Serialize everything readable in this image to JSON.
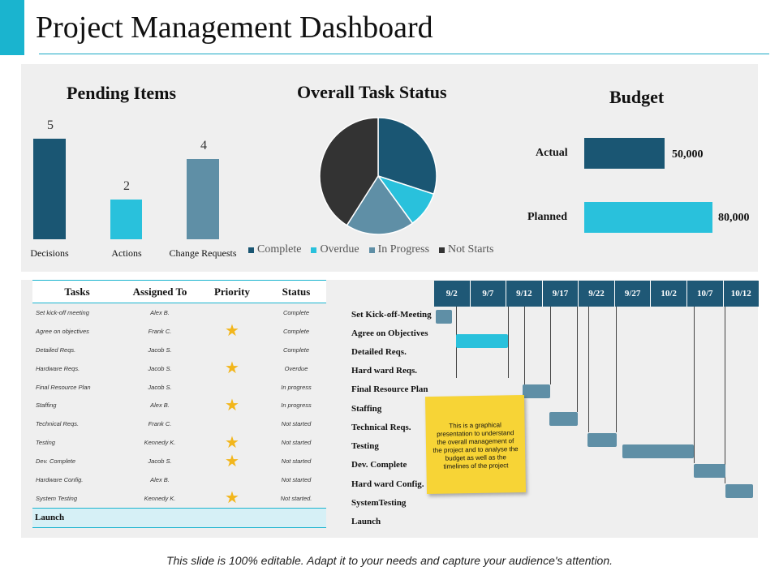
{
  "title": "Project Management Dashboard",
  "colors": {
    "dark": "#1a5673",
    "cyan": "#29c1dc",
    "slate": "#5f8fa6",
    "black": "#333333",
    "star": "#f2b61c"
  },
  "pending": {
    "heading": "Pending Items",
    "items": [
      {
        "label": "Decisions",
        "value": "5"
      },
      {
        "label": "Actions",
        "value": "2"
      },
      {
        "label": "Change Requests",
        "value": "4"
      }
    ]
  },
  "status": {
    "heading": "Overall Task Status",
    "legend": [
      "Complete",
      "Overdue",
      "In Progress",
      "Not Starts"
    ]
  },
  "chart_data": {
    "type": "pie",
    "title": "Overall Task Status",
    "categories": [
      "Complete",
      "Overdue",
      "In Progress",
      "Not Starts"
    ],
    "values": [
      30,
      10,
      19,
      41
    ]
  },
  "budget": {
    "heading": "Budget",
    "actual_label": "Actual",
    "actual_value": "50,000",
    "planned_label": "Planned",
    "planned_value": "80,000"
  },
  "tasks": {
    "headers": [
      "Tasks",
      "Assigned To",
      "Priority",
      "Status"
    ],
    "rows": [
      {
        "task": "Set kick-off meeting",
        "assigned": "Alex  B.",
        "status": "Complete"
      },
      {
        "task": "Agree on objectives",
        "assigned": "Frank  C.",
        "status": "Complete"
      },
      {
        "task": "Detailed Reqs.",
        "assigned": "Jacob  S.",
        "status": "Complete"
      },
      {
        "task": "Hardware Reqs.",
        "assigned": "Jacob  S.",
        "status": "Overdue"
      },
      {
        "task": "Final Resource Plan",
        "assigned": "Jacob  S.",
        "status": "In progress"
      },
      {
        "task": "Staffing",
        "assigned": "Alex  B.",
        "status": "In progress"
      },
      {
        "task": "Technical  Reqs.",
        "assigned": "Frank  C.",
        "status": "Not started"
      },
      {
        "task": "Testing",
        "assigned": "Kennedy  K.",
        "status": "Not started"
      },
      {
        "task": "Dev.  Complete",
        "assigned": "Jacob  S.",
        "status": "Not started"
      },
      {
        "task": "Hardware Config.",
        "assigned": "Alex  B.",
        "status": "Not started"
      },
      {
        "task": "System  Testing",
        "assigned": "Kennedy  K.",
        "status": "Not started."
      }
    ],
    "launch": "Launch"
  },
  "gantt": {
    "dates": [
      "9/2",
      "9/7",
      "9/12",
      "9/17",
      "9/22",
      "9/27",
      "10/2",
      "10/7",
      "10/12"
    ],
    "labels": [
      "Set Kick-off-Meeting",
      "Agree on Objectives",
      "Detailed Reqs.",
      "Hard ward Reqs.",
      "Final Resource Plan",
      "Staffing",
      "Technical Reqs.",
      "Testing",
      "Dev. Complete",
      "Hard ward Config.",
      "SystemTesting",
      "Launch"
    ]
  },
  "note": "This is a graphical presentation to understand the overall management of the project and to analyse the budget as well as the timelines of the project",
  "footer": "This slide is 100% editable. Adapt it to your needs and capture your audience's attention."
}
